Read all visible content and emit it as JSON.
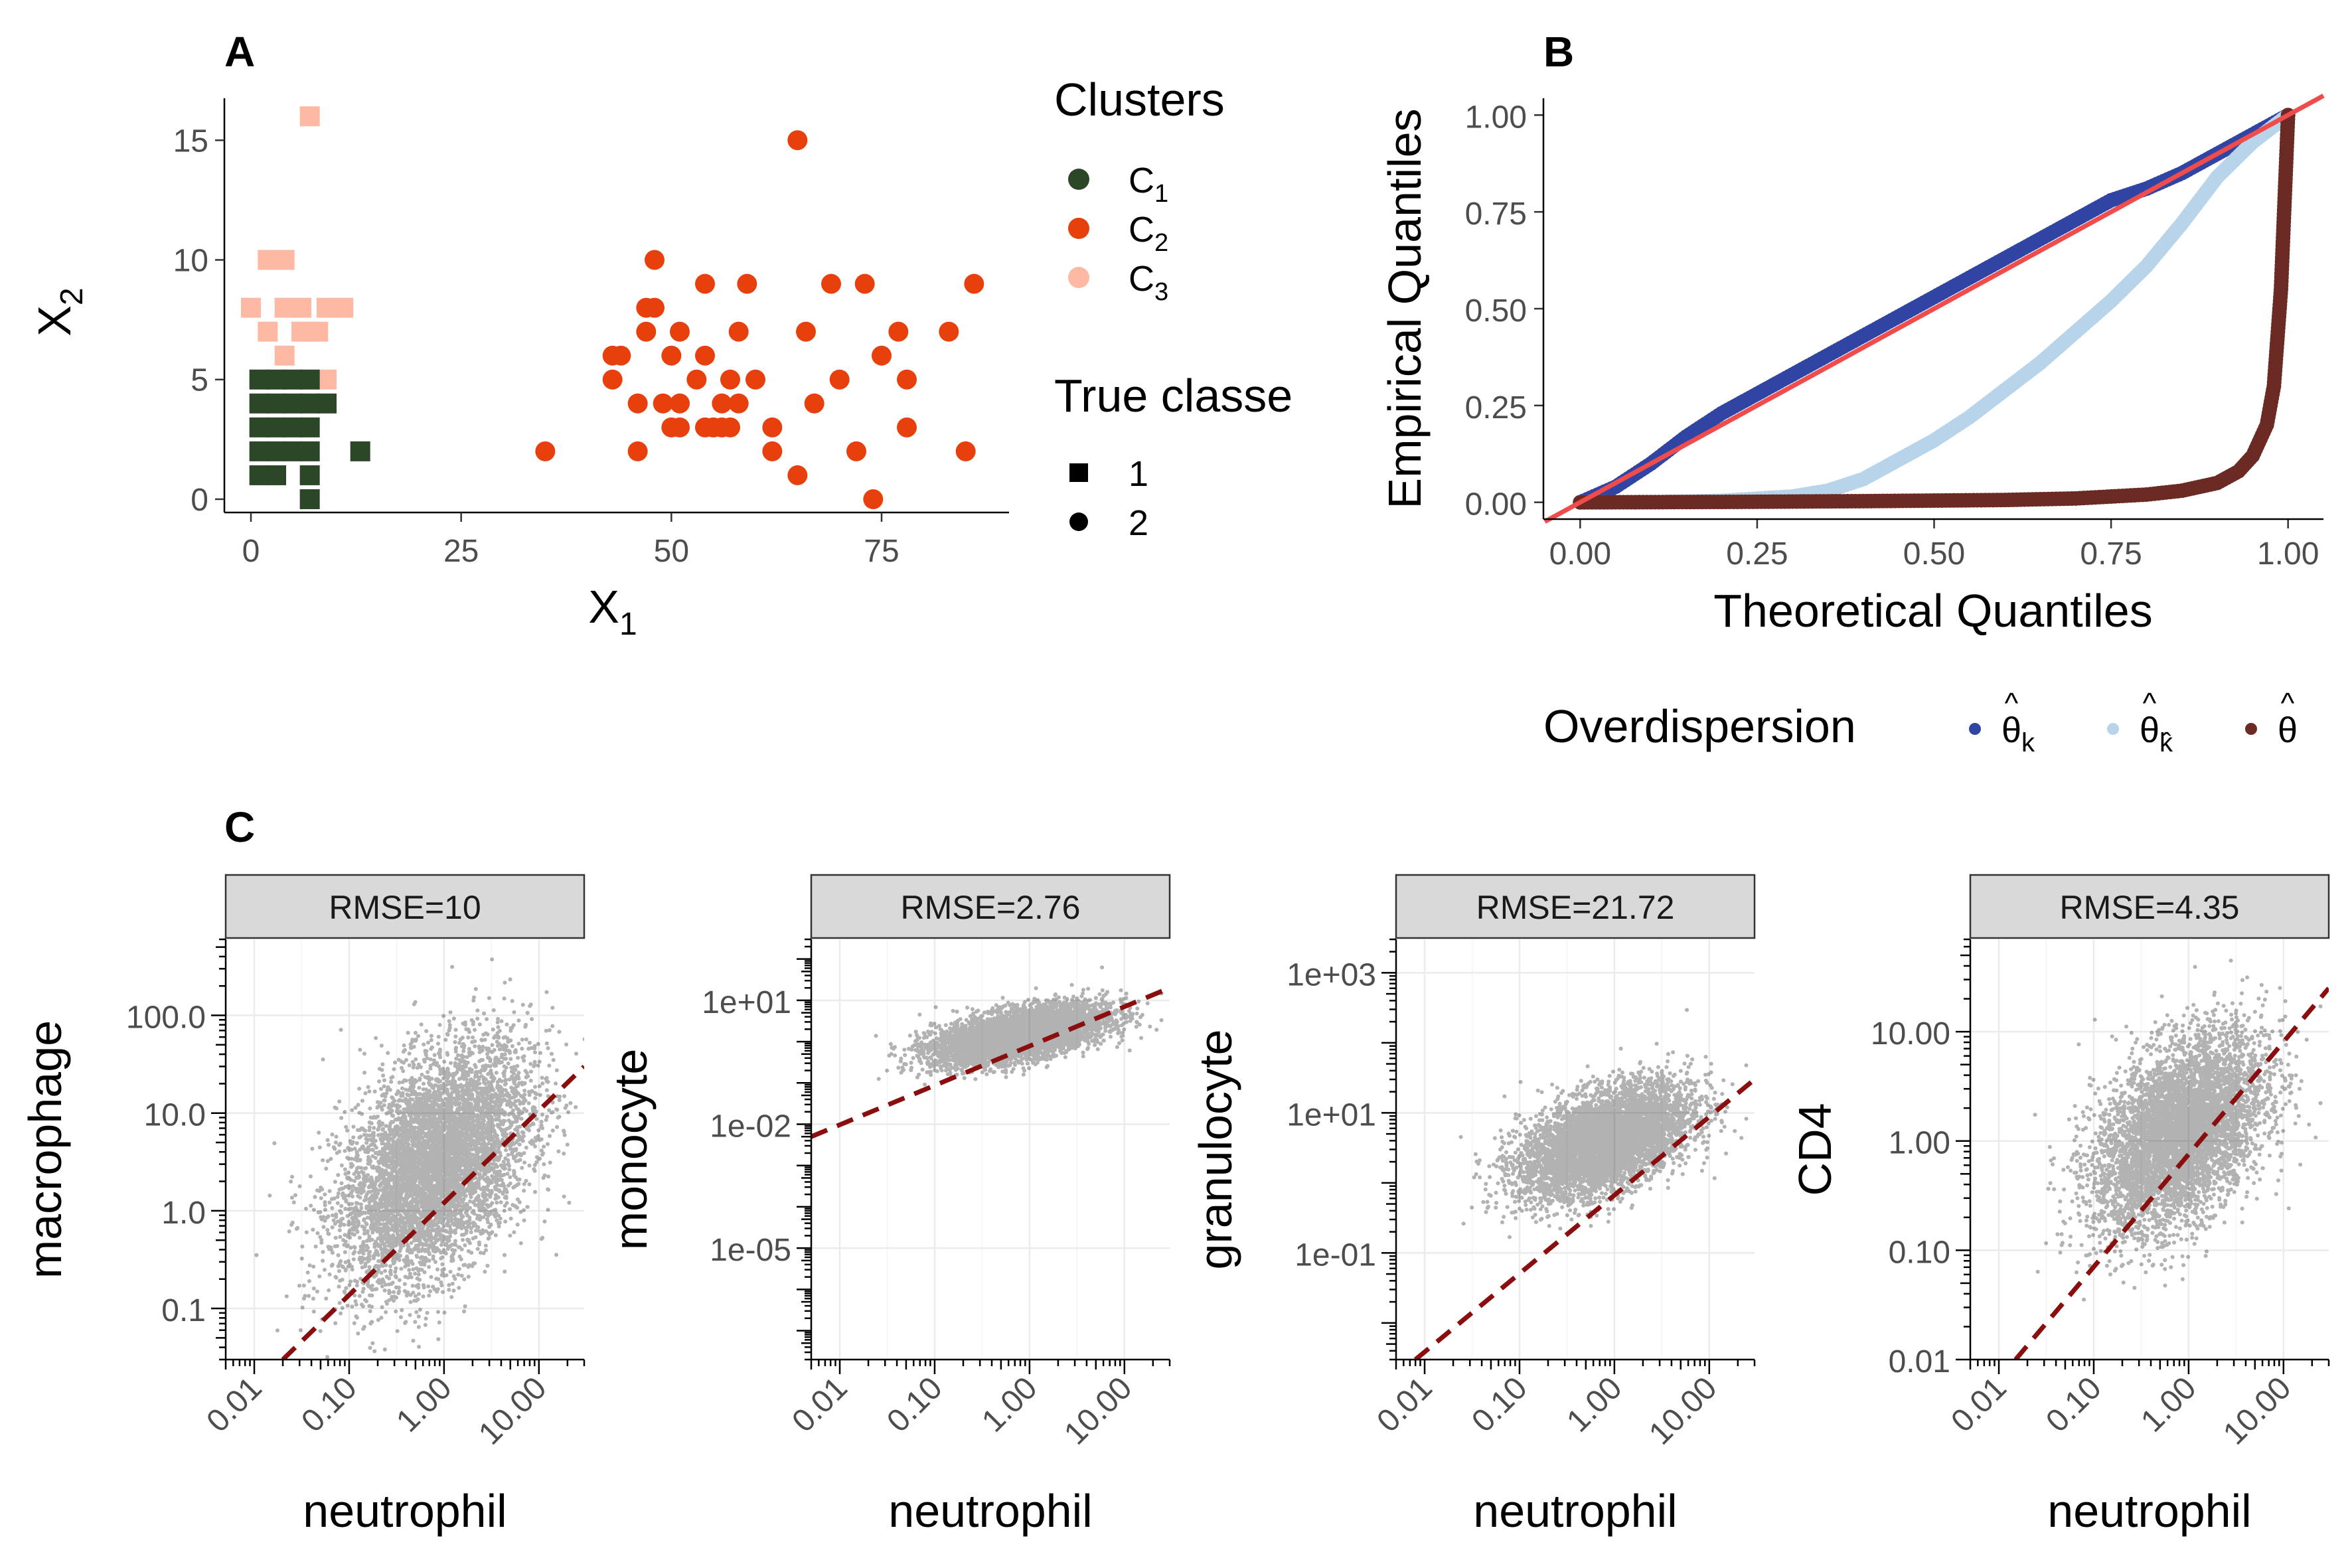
{
  "panels": {
    "A": {
      "tag": "A"
    },
    "B": {
      "tag": "B"
    },
    "C": {
      "tag": "C"
    }
  },
  "colors": {
    "c1": "#2c4728",
    "c2": "#e8400c",
    "c3": "#fdb9a4",
    "theta_k": "#3045a3",
    "theta_khat": "#b8d4ea",
    "theta": "#6b2a24",
    "ref_line": "#f04c4c",
    "dashed": "#8b0e0e"
  },
  "chart_data": [
    {
      "type": "scatter",
      "panel": "A",
      "xlabel": "X",
      "xlabel_sub": "1",
      "ylabel": "X",
      "ylabel_sub": "2",
      "xlim": [
        -3,
        90
      ],
      "ylim": [
        -0.5,
        16.7
      ],
      "x_ticks": [
        0,
        25,
        50,
        75
      ],
      "y_ticks": [
        0,
        5,
        10,
        15
      ],
      "x_tick_labels": [
        "0",
        "25",
        "50",
        "75"
      ],
      "y_tick_labels": [
        "0",
        "5",
        "10",
        "15"
      ],
      "legend": {
        "clusters_title": "Clusters",
        "clusters": [
          {
            "label": "C",
            "sub": "1",
            "key": "c1"
          },
          {
            "label": "C",
            "sub": "2",
            "key": "c2"
          },
          {
            "label": "C",
            "sub": "3",
            "key": "c3"
          }
        ],
        "classes_title": "True classe",
        "classes": [
          {
            "label": "1",
            "shape": "square"
          },
          {
            "label": "2",
            "shape": "circle"
          }
        ]
      },
      "series": [
        {
          "cluster": "c3",
          "shape": "square",
          "points": [
            [
              7,
              16
            ],
            [
              2,
              10
            ],
            [
              4,
              10
            ],
            [
              0,
              8
            ],
            [
              4,
              8
            ],
            [
              6,
              8
            ],
            [
              9,
              8
            ],
            [
              11,
              8
            ],
            [
              2,
              7
            ],
            [
              6,
              7
            ],
            [
              8,
              7
            ],
            [
              4,
              6
            ],
            [
              9,
              5
            ]
          ]
        },
        {
          "cluster": "c1",
          "shape": "square",
          "points": [
            [
              1,
              5
            ],
            [
              3,
              5
            ],
            [
              5,
              5
            ],
            [
              7,
              5
            ],
            [
              1,
              4
            ],
            [
              3,
              4
            ],
            [
              5,
              4
            ],
            [
              7,
              4
            ],
            [
              9,
              4
            ],
            [
              1,
              3
            ],
            [
              3,
              3
            ],
            [
              5,
              3
            ],
            [
              7,
              3
            ],
            [
              1,
              2
            ],
            [
              3,
              2
            ],
            [
              5,
              2
            ],
            [
              7,
              2
            ],
            [
              13,
              2
            ],
            [
              1,
              1
            ],
            [
              3,
              1
            ],
            [
              7,
              1
            ],
            [
              7,
              0
            ]
          ]
        },
        {
          "cluster": "c2",
          "shape": "circle",
          "points": [
            [
              65,
              15
            ],
            [
              48,
              10
            ],
            [
              54,
              9
            ],
            [
              59,
              9
            ],
            [
              69,
              9
            ],
            [
              73,
              9
            ],
            [
              86,
              9
            ],
            [
              47,
              8
            ],
            [
              48,
              8
            ],
            [
              47,
              7
            ],
            [
              51,
              7
            ],
            [
              58,
              7
            ],
            [
              66,
              7
            ],
            [
              77,
              7
            ],
            [
              83,
              7
            ],
            [
              43,
              6
            ],
            [
              44,
              6
            ],
            [
              50,
              6
            ],
            [
              54,
              6
            ],
            [
              75,
              6
            ],
            [
              43,
              5
            ],
            [
              53,
              5
            ],
            [
              57,
              5
            ],
            [
              60,
              5
            ],
            [
              70,
              5
            ],
            [
              78,
              5
            ],
            [
              46,
              4
            ],
            [
              49,
              4
            ],
            [
              51,
              4
            ],
            [
              56,
              4
            ],
            [
              58,
              4
            ],
            [
              67,
              4
            ],
            [
              50,
              3
            ],
            [
              51,
              3
            ],
            [
              54,
              3
            ],
            [
              55,
              3
            ],
            [
              56,
              3
            ],
            [
              57,
              3
            ],
            [
              62,
              3
            ],
            [
              78,
              3
            ],
            [
              35,
              2
            ],
            [
              46,
              2
            ],
            [
              62,
              2
            ],
            [
              72,
              2
            ],
            [
              85,
              2
            ],
            [
              65,
              1
            ],
            [
              74,
              0
            ]
          ]
        }
      ]
    },
    {
      "type": "line",
      "panel": "B",
      "title": "",
      "xlabel": "Theoretical Quantiles",
      "ylabel": "Empirical Quantiles",
      "xlim": [
        -0.05,
        1.05
      ],
      "ylim": [
        -0.04,
        1.04
      ],
      "x_ticks": [
        0,
        0.25,
        0.5,
        0.75,
        1.0
      ],
      "y_ticks": [
        0,
        0.25,
        0.5,
        0.75,
        1.0
      ],
      "x_tick_labels": [
        "0.00",
        "0.25",
        "0.50",
        "0.75",
        "1.00"
      ],
      "y_tick_labels": [
        "0.00",
        "0.25",
        "0.50",
        "0.75",
        "1.00"
      ],
      "legend": {
        "title": "Overdispersion",
        "position": "bottom",
        "entries": [
          {
            "key": "theta_k",
            "symbol": "θ",
            "sub": "k"
          },
          {
            "key": "theta_khat",
            "symbol": "θ",
            "sub": "k̂"
          },
          {
            "key": "theta",
            "symbol": "θ",
            "sub": ""
          }
        ]
      },
      "reference_line": {
        "slope": 1,
        "intercept": 0
      },
      "series": [
        {
          "key": "theta_k",
          "x": [
            0,
            0.05,
            0.1,
            0.15,
            0.2,
            0.25,
            0.3,
            0.35,
            0.4,
            0.45,
            0.5,
            0.55,
            0.6,
            0.65,
            0.7,
            0.75,
            0.8,
            0.85,
            0.9,
            0.95,
            1.0
          ],
          "y": [
            0,
            0.04,
            0.1,
            0.17,
            0.23,
            0.28,
            0.33,
            0.38,
            0.43,
            0.48,
            0.53,
            0.58,
            0.63,
            0.68,
            0.73,
            0.78,
            0.81,
            0.85,
            0.9,
            0.95,
            1.0
          ]
        },
        {
          "key": "theta_khat",
          "x": [
            0,
            0.1,
            0.2,
            0.3,
            0.35,
            0.4,
            0.45,
            0.5,
            0.55,
            0.6,
            0.65,
            0.7,
            0.75,
            0.8,
            0.85,
            0.9,
            0.95,
            1.0
          ],
          "y": [
            0,
            0,
            0.004,
            0.015,
            0.03,
            0.06,
            0.11,
            0.16,
            0.22,
            0.29,
            0.36,
            0.44,
            0.52,
            0.61,
            0.72,
            0.84,
            0.93,
            1.0
          ]
        },
        {
          "key": "theta",
          "x": [
            0,
            0.2,
            0.4,
            0.6,
            0.7,
            0.8,
            0.85,
            0.9,
            0.93,
            0.95,
            0.97,
            0.98,
            0.99,
            1.0
          ],
          "y": [
            0,
            0.001,
            0.003,
            0.006,
            0.01,
            0.02,
            0.03,
            0.05,
            0.08,
            0.12,
            0.2,
            0.3,
            0.55,
            1.0
          ]
        }
      ]
    },
    {
      "type": "scatter",
      "panel": "C1",
      "strip": "RMSE=10",
      "xlabel": "neutrophil",
      "ylabel": "macrophage",
      "xscale": "log10",
      "yscale": "log10",
      "xlim": [
        0.005,
        30
      ],
      "ylim": [
        0.03,
        600
      ],
      "x_ticks": [
        0.01,
        0.1,
        1,
        10
      ],
      "x_tick_labels": [
        "0.01",
        "0.10",
        "1.00",
        "10.00"
      ],
      "y_ticks": [
        0.1,
        1,
        10,
        100
      ],
      "y_tick_labels": [
        "0.1",
        "1.0",
        "10.0",
        "100.0"
      ],
      "cloud": {
        "x_center": 0.8,
        "x_spread": 0.5,
        "y_center": 3,
        "y_spread": 0.6,
        "n": 6000,
        "rho": 0.45
      },
      "dashed_line": {
        "points": [
          [
            0.02,
            0.03
          ],
          [
            30,
            30
          ]
        ]
      }
    },
    {
      "type": "scatter",
      "panel": "C2",
      "strip": "RMSE=2.76",
      "xlabel": "neutrophil",
      "ylabel": "monocyte",
      "xscale": "log10",
      "yscale": "log10",
      "xlim": [
        0.005,
        30
      ],
      "ylim": [
        2e-08,
        300
      ],
      "x_ticks": [
        0.01,
        0.1,
        1,
        10
      ],
      "x_tick_labels": [
        "0.01",
        "0.10",
        "1.00",
        "10.00"
      ],
      "y_ticks": [
        1e-05,
        0.01,
        10
      ],
      "y_tick_labels": [
        "1e-05",
        "1e-02",
        "1e+01"
      ],
      "cloud": {
        "x_center": 0.8,
        "x_spread": 0.45,
        "y_center": 1.5,
        "y_spread": 0.35,
        "n": 6000,
        "rho": 0.55
      },
      "dashed_line": {
        "points": [
          [
            0.005,
            0.005
          ],
          [
            30,
            20
          ]
        ]
      }
    },
    {
      "type": "scatter",
      "panel": "C3",
      "strip": "RMSE=21.72",
      "xlabel": "neutrophil",
      "ylabel": "granulocyte",
      "xscale": "log10",
      "yscale": "log10",
      "xlim": [
        0.005,
        30
      ],
      "ylim": [
        0.003,
        3000
      ],
      "x_ticks": [
        0.01,
        0.1,
        1,
        10
      ],
      "x_tick_labels": [
        "0.01",
        "0.10",
        "1.00",
        "10.00"
      ],
      "y_ticks": [
        0.1,
        10,
        1000
      ],
      "y_tick_labels": [
        "1e-01",
        "1e+01",
        "1e+03"
      ],
      "cloud": {
        "x_center": 0.8,
        "x_spread": 0.45,
        "y_center": 4,
        "y_spread": 0.4,
        "n": 6000,
        "rho": 0.5
      },
      "dashed_line": {
        "points": [
          [
            0.008,
            0.003
          ],
          [
            30,
            30
          ]
        ]
      }
    },
    {
      "type": "scatter",
      "panel": "C4",
      "strip": "RMSE=4.35",
      "xlabel": "neutrophil",
      "ylabel": "CD4",
      "xscale": "log10",
      "yscale": "log10",
      "xlim": [
        0.005,
        30
      ],
      "ylim": [
        0.01,
        70
      ],
      "x_ticks": [
        0.01,
        0.1,
        1,
        10
      ],
      "x_tick_labels": [
        "0.01",
        "0.10",
        "1.00",
        "10.00"
      ],
      "y_ticks": [
        0.01,
        0.1,
        1,
        10
      ],
      "y_tick_labels": [
        "0.01",
        "0.10",
        "1.00",
        "10.00"
      ],
      "cloud": {
        "x_center": 0.8,
        "x_spread": 0.45,
        "y_center": 1.2,
        "y_spread": 0.45,
        "n": 6000,
        "rho": 0.45
      },
      "dashed_line": {
        "points": [
          [
            0.015,
            0.01
          ],
          [
            30,
            25
          ]
        ]
      }
    }
  ]
}
